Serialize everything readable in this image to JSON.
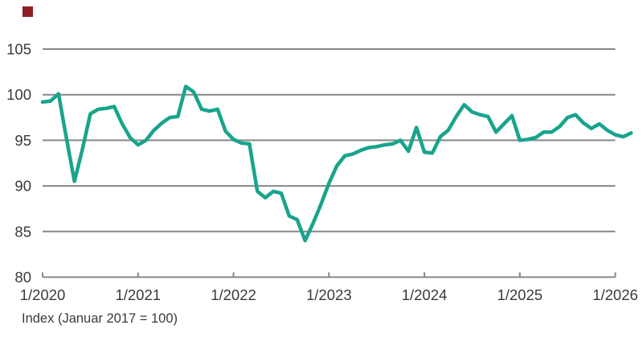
{
  "brand": {
    "mark_color": "#8e1e26"
  },
  "colors": {
    "text": "#3a3a38",
    "grid": "#878787",
    "line": "#18a48c",
    "background": "#ffffff"
  },
  "chart_data": {
    "type": "line",
    "title": "",
    "caption": "Index (Januar 2017 = 100)",
    "legend": "none",
    "grid": "horizontal",
    "ylim": [
      80,
      105
    ],
    "y_ticks": [
      80,
      85,
      90,
      95,
      100,
      105
    ],
    "x_tick_labels": [
      "1/2020",
      "1/2021",
      "1/2022",
      "1/2023",
      "1/2024",
      "1/2025",
      "1/2026"
    ],
    "months_per_tick": 12,
    "series": [
      {
        "name": "index-januar-2017-100",
        "color": "#18a48c",
        "start": "1/2020",
        "interval": "monthly",
        "values": [
          99.2,
          99.3,
          100.1,
          95.2,
          90.5,
          94.0,
          97.9,
          98.4,
          98.5,
          98.7,
          96.8,
          95.3,
          94.5,
          95.0,
          96.1,
          96.9,
          97.5,
          97.6,
          100.9,
          100.3,
          98.4,
          98.2,
          98.4,
          96.0,
          95.1,
          94.7,
          94.6,
          89.4,
          88.7,
          89.4,
          89.2,
          86.7,
          86.3,
          84.0,
          85.9,
          88.0,
          90.3,
          92.2,
          93.3,
          93.5,
          93.9,
          94.2,
          94.3,
          94.5,
          94.6,
          95.0,
          93.8,
          96.4,
          93.7,
          93.6,
          95.4,
          96.1,
          97.6,
          98.9,
          98.1,
          97.8,
          97.6,
          95.9,
          96.8,
          97.7,
          95.0,
          95.1,
          95.3,
          95.9,
          95.9,
          96.5,
          97.5,
          97.8,
          96.9,
          96.3,
          96.8,
          96.1,
          95.6,
          95.4,
          95.8
        ]
      }
    ]
  }
}
